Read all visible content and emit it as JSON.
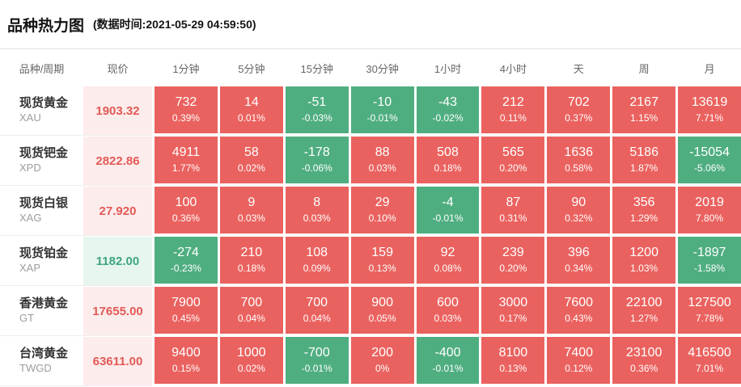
{
  "page": {
    "title": "品种热力图",
    "subtitle": "(数据时间:2021-05-29 04:59:50)"
  },
  "colors": {
    "up_cell": "#ea625f",
    "down_cell": "#4fae80",
    "up_price_bg": "#fdecec",
    "up_price_text": "#e25a56",
    "down_price_bg": "#e6f6ee",
    "down_price_text": "#3ea57d"
  },
  "chart_data": {
    "type": "heatmap",
    "title": "品种热力图",
    "timestamp_label": "(数据时间:2021-05-29 04:59:50)",
    "columns": [
      "品种/周期",
      "现价",
      "1分钟",
      "5分钟",
      "15分钟",
      "30分钟",
      "1小时",
      "4小时",
      "天",
      "周",
      "月"
    ],
    "legend": {
      "up_color_meaning": "上涨",
      "down_color_meaning": "下跌"
    },
    "rows": [
      {
        "name": "现货黄金",
        "code": "XAU",
        "price": "1903.32",
        "price_trend": "up",
        "cells": [
          {
            "value": "732",
            "pct": "0.39%",
            "trend": "up"
          },
          {
            "value": "14",
            "pct": "0.01%",
            "trend": "up"
          },
          {
            "value": "-51",
            "pct": "-0.03%",
            "trend": "down"
          },
          {
            "value": "-10",
            "pct": "-0.01%",
            "trend": "down"
          },
          {
            "value": "-43",
            "pct": "-0.02%",
            "trend": "down"
          },
          {
            "value": "212",
            "pct": "0.11%",
            "trend": "up"
          },
          {
            "value": "702",
            "pct": "0.37%",
            "trend": "up"
          },
          {
            "value": "2167",
            "pct": "1.15%",
            "trend": "up"
          },
          {
            "value": "13619",
            "pct": "7.71%",
            "trend": "up"
          }
        ]
      },
      {
        "name": "现货钯金",
        "code": "XPD",
        "price": "2822.86",
        "price_trend": "up",
        "cells": [
          {
            "value": "4911",
            "pct": "1.77%",
            "trend": "up"
          },
          {
            "value": "58",
            "pct": "0.02%",
            "trend": "up"
          },
          {
            "value": "-178",
            "pct": "-0.06%",
            "trend": "down"
          },
          {
            "value": "88",
            "pct": "0.03%",
            "trend": "up"
          },
          {
            "value": "508",
            "pct": "0.18%",
            "trend": "up"
          },
          {
            "value": "565",
            "pct": "0.20%",
            "trend": "up"
          },
          {
            "value": "1636",
            "pct": "0.58%",
            "trend": "up"
          },
          {
            "value": "5186",
            "pct": "1.87%",
            "trend": "up"
          },
          {
            "value": "-15054",
            "pct": "-5.06%",
            "trend": "down"
          }
        ]
      },
      {
        "name": "现货白银",
        "code": "XAG",
        "price": "27.920",
        "price_trend": "up",
        "cells": [
          {
            "value": "100",
            "pct": "0.36%",
            "trend": "up"
          },
          {
            "value": "9",
            "pct": "0.03%",
            "trend": "up"
          },
          {
            "value": "8",
            "pct": "0.03%",
            "trend": "up"
          },
          {
            "value": "29",
            "pct": "0.10%",
            "trend": "up"
          },
          {
            "value": "-4",
            "pct": "-0.01%",
            "trend": "down"
          },
          {
            "value": "87",
            "pct": "0.31%",
            "trend": "up"
          },
          {
            "value": "90",
            "pct": "0.32%",
            "trend": "up"
          },
          {
            "value": "356",
            "pct": "1.29%",
            "trend": "up"
          },
          {
            "value": "2019",
            "pct": "7.80%",
            "trend": "up"
          }
        ]
      },
      {
        "name": "现货铂金",
        "code": "XAP",
        "price": "1182.00",
        "price_trend": "down",
        "cells": [
          {
            "value": "-274",
            "pct": "-0.23%",
            "trend": "down"
          },
          {
            "value": "210",
            "pct": "0.18%",
            "trend": "up"
          },
          {
            "value": "108",
            "pct": "0.09%",
            "trend": "up"
          },
          {
            "value": "159",
            "pct": "0.13%",
            "trend": "up"
          },
          {
            "value": "92",
            "pct": "0.08%",
            "trend": "up"
          },
          {
            "value": "239",
            "pct": "0.20%",
            "trend": "up"
          },
          {
            "value": "396",
            "pct": "0.34%",
            "trend": "up"
          },
          {
            "value": "1200",
            "pct": "1.03%",
            "trend": "up"
          },
          {
            "value": "-1897",
            "pct": "-1.58%",
            "trend": "down"
          }
        ]
      },
      {
        "name": "香港黄金",
        "code": "GT",
        "price": "17655.00",
        "price_trend": "up",
        "cells": [
          {
            "value": "7900",
            "pct": "0.45%",
            "trend": "up"
          },
          {
            "value": "700",
            "pct": "0.04%",
            "trend": "up"
          },
          {
            "value": "700",
            "pct": "0.04%",
            "trend": "up"
          },
          {
            "value": "900",
            "pct": "0.05%",
            "trend": "up"
          },
          {
            "value": "600",
            "pct": "0.03%",
            "trend": "up"
          },
          {
            "value": "3000",
            "pct": "0.17%",
            "trend": "up"
          },
          {
            "value": "7600",
            "pct": "0.43%",
            "trend": "up"
          },
          {
            "value": "22100",
            "pct": "1.27%",
            "trend": "up"
          },
          {
            "value": "127500",
            "pct": "7.78%",
            "trend": "up"
          }
        ]
      },
      {
        "name": "台湾黄金",
        "code": "TWGD",
        "price": "63611.00",
        "price_trend": "up",
        "cells": [
          {
            "value": "9400",
            "pct": "0.15%",
            "trend": "up"
          },
          {
            "value": "1000",
            "pct": "0.02%",
            "trend": "up"
          },
          {
            "value": "-700",
            "pct": "-0.01%",
            "trend": "down"
          },
          {
            "value": "200",
            "pct": "0%",
            "trend": "up"
          },
          {
            "value": "-400",
            "pct": "-0.01%",
            "trend": "down"
          },
          {
            "value": "8100",
            "pct": "0.13%",
            "trend": "up"
          },
          {
            "value": "7400",
            "pct": "0.12%",
            "trend": "up"
          },
          {
            "value": "23100",
            "pct": "0.36%",
            "trend": "up"
          },
          {
            "value": "416500",
            "pct": "7.01%",
            "trend": "up"
          }
        ]
      }
    ]
  }
}
